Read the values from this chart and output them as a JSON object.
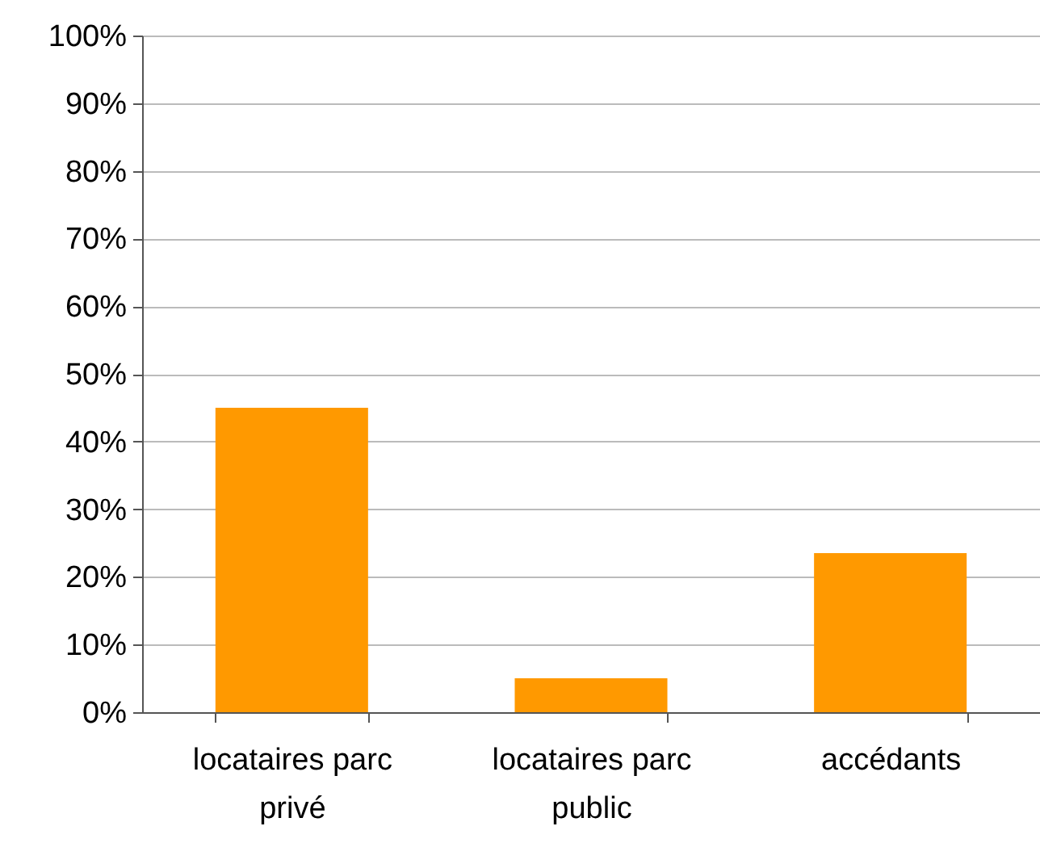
{
  "chart_data": {
    "type": "bar",
    "categories": [
      "locataires parc privé",
      "locataires parc public",
      "accédants"
    ],
    "values": [
      45,
      5,
      23.5
    ],
    "color": "#ff9900",
    "ylim": [
      0,
      100
    ],
    "yticks": [
      {
        "value": 0,
        "label": "0%"
      },
      {
        "value": 10,
        "label": "10%"
      },
      {
        "value": 20,
        "label": "20%"
      },
      {
        "value": 30,
        "label": "30%"
      },
      {
        "value": 40,
        "label": "40%"
      },
      {
        "value": 50,
        "label": "50%"
      },
      {
        "value": 60,
        "label": "60%"
      },
      {
        "value": 70,
        "label": "70%"
      },
      {
        "value": 80,
        "label": "80%"
      },
      {
        "value": 90,
        "label": "90%"
      },
      {
        "value": 100,
        "label": "100%"
      }
    ],
    "grid": "y"
  }
}
